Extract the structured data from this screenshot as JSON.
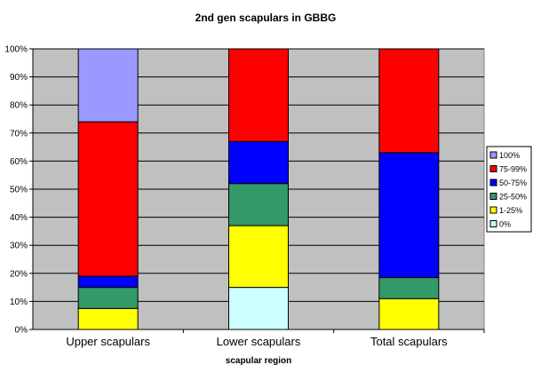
{
  "chart_data": {
    "type": "bar",
    "stacked": true,
    "percent_stacked": true,
    "title": "2nd gen scapulars in GBBG",
    "xlabel": "scapular region",
    "ylabel": "",
    "ylim": [
      0,
      100
    ],
    "ytick_labels": [
      "0%",
      "10%",
      "20%",
      "30%",
      "40%",
      "50%",
      "60%",
      "70%",
      "80%",
      "90%",
      "100%"
    ],
    "categories": [
      "Upper scapulars",
      "Lower scapulars",
      "Total scapulars"
    ],
    "series": [
      {
        "name": "0%",
        "color": "#ccffff",
        "values": [
          0,
          15,
          0
        ]
      },
      {
        "name": "1-25%",
        "color": "#ffff00",
        "values": [
          7.5,
          22,
          11
        ]
      },
      {
        "name": "25-50%",
        "color": "#339966",
        "values": [
          7.5,
          15,
          7.5
        ]
      },
      {
        "name": "50-75%",
        "color": "#0000ff",
        "values": [
          4,
          15,
          44.5
        ]
      },
      {
        "name": "75-99%",
        "color": "#ff0000",
        "values": [
          55,
          33,
          37
        ]
      },
      {
        "name": "100%",
        "color": "#9999ff",
        "values": [
          26,
          0,
          0
        ]
      }
    ],
    "legend_order": [
      "100%",
      "75-99%",
      "50-75%",
      "25-50%",
      "1-25%",
      "0%"
    ],
    "legend_position": "right",
    "grid": true,
    "plot_background": "#c0c0c0"
  }
}
